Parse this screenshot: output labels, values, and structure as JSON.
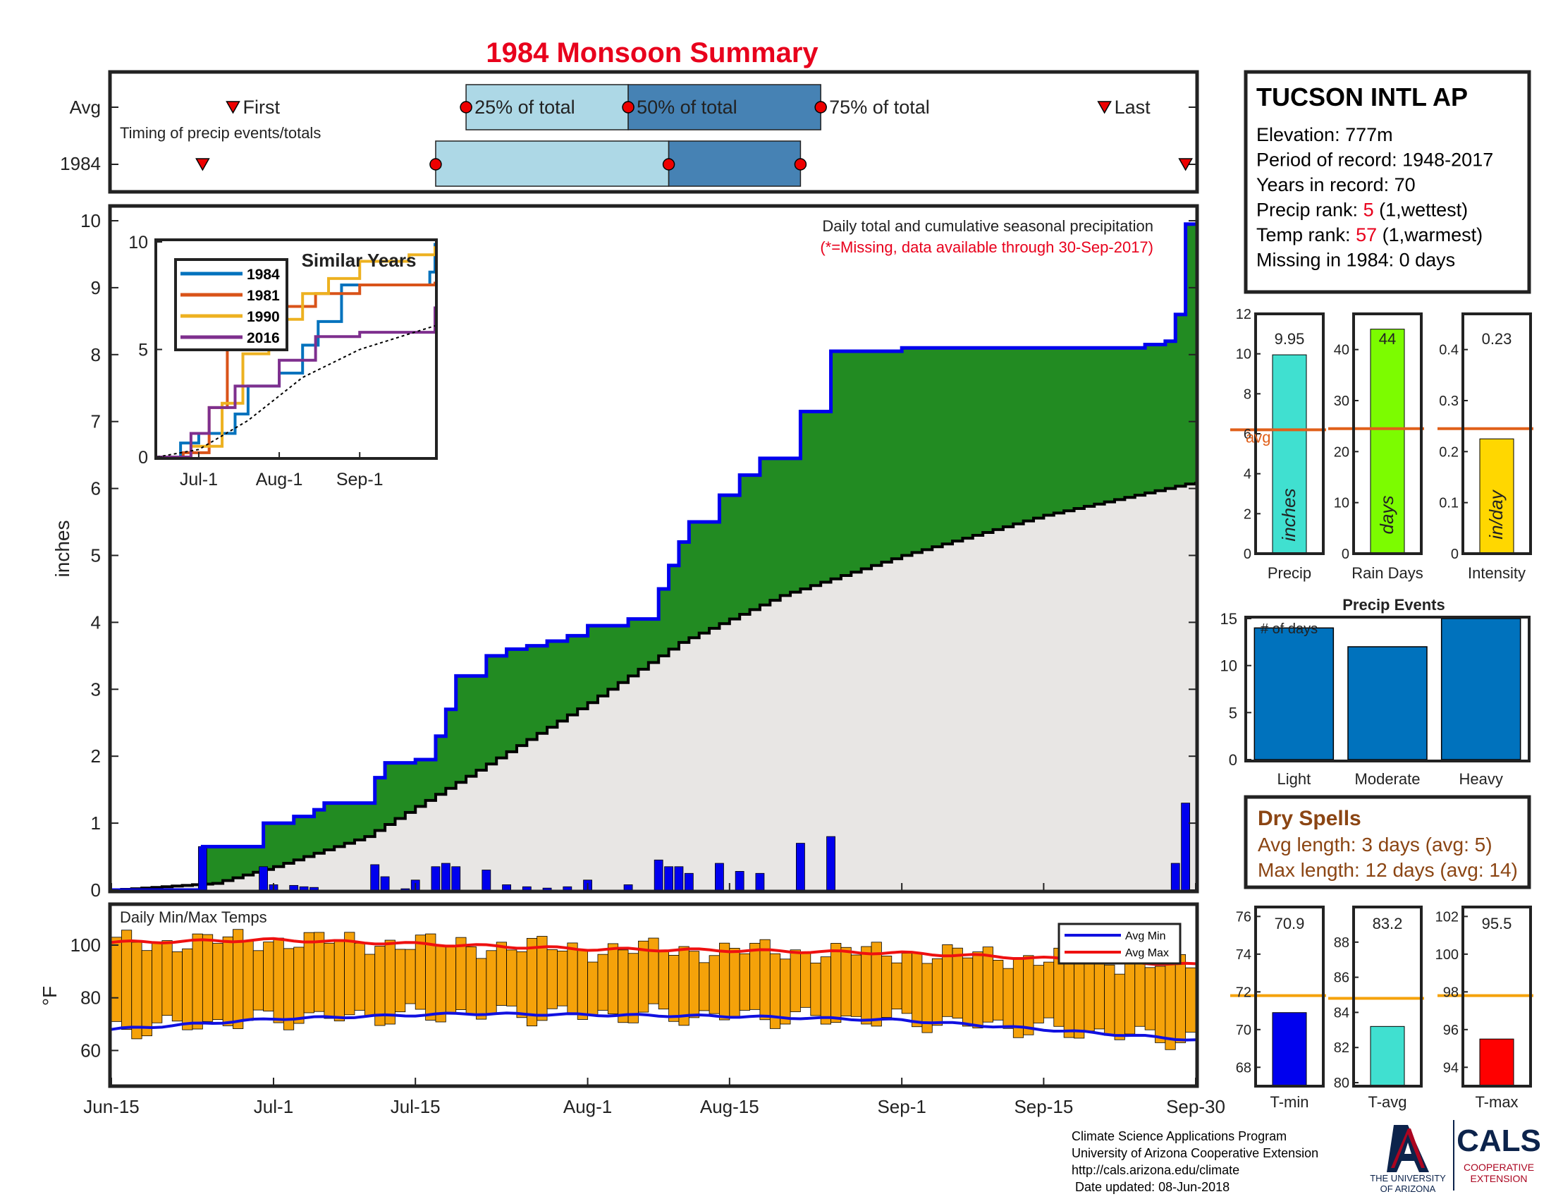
{
  "title": "1984 Monsoon Summary",
  "colors": {
    "title": "#e8001c",
    "cumulative_fill": "#228b22",
    "cumulative_line": "#0000ee",
    "avg_fill": "#e8e6e4",
    "daily_bar": "#0000ee",
    "temp_bar": "#f5a20a",
    "avg_min_line": "#1010e0",
    "avg_max_line": "#ee1010",
    "timing_light": "#add8e6",
    "timing_dark": "#4682b4",
    "orange_avg": "#e0601a"
  },
  "timing": {
    "row_labels": [
      "Avg",
      "1984"
    ],
    "caption": "Timing of precip events/totals",
    "markers": {
      "first": "First",
      "p25": "25% of total",
      "p50": "50% of total",
      "p75": "75% of total",
      "last": "Last"
    },
    "avg": {
      "first": "Jun-27",
      "p25": "Jul-20",
      "p50": "Aug-5",
      "p75": "Aug-24",
      "last": "Sep-21"
    },
    "year": {
      "first": "Jun-24",
      "p25": "Jul-17",
      "p50": "Aug-9",
      "p75": "Aug-22",
      "last": "Sep-29"
    }
  },
  "station": {
    "name": "TUCSON INTL AP",
    "lines": [
      {
        "label": "Elevation: ",
        "value": "777m",
        "suffix": ""
      },
      {
        "label": "Period of record: ",
        "value": "1948-2017",
        "suffix": ""
      },
      {
        "label": "Years in record: ",
        "value": "70",
        "suffix": ""
      },
      {
        "label": "Precip rank: ",
        "value": "5",
        "suffix": " (1,wettest)",
        "highlight": true
      },
      {
        "label": "Temp rank: ",
        "value": "57",
        "suffix": " (1,warmest)",
        "highlight": true
      },
      {
        "label": "Missing in 1984: ",
        "value": "0 days",
        "suffix": ""
      }
    ]
  },
  "main_chart": {
    "note": "Daily total and cumulative seasonal precipitation",
    "missing_note": "(*=Missing, data available through 30-Sep-2017)",
    "ylabel": "inches",
    "x_ticks": [
      "Jun-15",
      "Jul-1",
      "Jul-15",
      "Aug-1",
      "Aug-15",
      "Sep-1",
      "Sep-15",
      "Sep-30"
    ]
  },
  "inset": {
    "title": "Similar Years",
    "x_ticks": [
      "Jul-1",
      "Aug-1",
      "Sep-1"
    ],
    "y_ticks": [
      "0",
      "5",
      "10"
    ]
  },
  "temps": {
    "label": "Daily Min/Max Temps",
    "ylabel": "°F",
    "legend": [
      "Avg Min",
      "Avg Max"
    ]
  },
  "summary_bars": {
    "avg_label": "avg",
    "panels": [
      {
        "name": "Precip",
        "value": 9.95,
        "value_label": "9.95",
        "avg": 6.2,
        "ylim": [
          0,
          12
        ],
        "ticks": [
          "0",
          "2",
          "4",
          "6",
          "8",
          "10",
          "12"
        ],
        "unit": "inches",
        "color": "#40e0d0"
      },
      {
        "name": "Rain Days",
        "value": 44,
        "value_label": "44",
        "avg": 24.5,
        "ylim": [
          0,
          47
        ],
        "ticks": [
          "0",
          "10",
          "20",
          "30",
          "40"
        ],
        "unit": "days",
        "color": "#7cfc00"
      },
      {
        "name": "Intensity",
        "value": 0.225,
        "value_label": "0.23",
        "avg": 0.245,
        "ylim": [
          0,
          0.47
        ],
        "ticks": [
          "0",
          "0.1",
          "0.2",
          "0.3",
          "0.4"
        ],
        "unit": "in/day",
        "color": "#ffd700"
      }
    ]
  },
  "precip_events": {
    "title": "Precip Events",
    "ylabel": "# of days",
    "categories": [
      "Light",
      "Moderate",
      "Heavy"
    ],
    "values": [
      14,
      12,
      15
    ],
    "ticks": [
      "0",
      "5",
      "10",
      "15"
    ]
  },
  "dry_spells": {
    "title": "Dry Spells",
    "lines": [
      "Avg length: 3 days (avg: 5)",
      "Max length: 12 days (avg: 14)"
    ]
  },
  "temp_summary": {
    "panels": [
      {
        "name": "T-min",
        "value": 70.9,
        "value_label": "70.9",
        "avg": 71.8,
        "ylim": [
          67,
          76.5
        ],
        "ticks": [
          "68",
          "70",
          "72",
          "74",
          "76"
        ],
        "color": "#0000ee"
      },
      {
        "name": "T-avg",
        "value": 83.2,
        "value_label": "83.2",
        "avg": 84.8,
        "ylim": [
          79.8,
          90
        ],
        "ticks": [
          "80",
          "82",
          "84",
          "86",
          "88"
        ],
        "color": "#40e0d0"
      },
      {
        "name": "T-max",
        "value": 95.5,
        "value_label": "95.5",
        "avg": 97.8,
        "ylim": [
          93,
          102.5
        ],
        "ticks": [
          "94",
          "96",
          "98",
          "100",
          "102"
        ],
        "color": "#ff0000"
      }
    ]
  },
  "footer": {
    "lines": [
      "Climate Science Applications Program",
      "University of Arizona Cooperative Extension",
      "http://cals.arizona.edu/climate",
      " Date updated: 08-Jun-2018"
    ],
    "logo_ua": "THE UNIVERSITY OF ARIZONA",
    "logo_ua_lines": [
      "THE UNIVERSITY",
      "OF ARIZONA"
    ],
    "logo_cals": "CALS",
    "logo_cals_sub": [
      "COOPERATIVE",
      "EXTENSION"
    ]
  },
  "chart_data": [
    {
      "type": "area",
      "title": "",
      "ylabel": "inches",
      "ylim": [
        0,
        10.2
      ],
      "x_range": [
        "Jun-15",
        "Sep-30"
      ],
      "x_ticks": [
        "Jun-15",
        "Jul-1",
        "Jul-15",
        "Aug-1",
        "Aug-15",
        "Sep-1",
        "Sep-15",
        "Sep-30"
      ],
      "y_ticks": [
        0,
        1,
        2,
        3,
        4,
        5,
        6,
        7,
        8,
        9,
        10
      ],
      "daily_precip": [
        {
          "date": "Jun-24",
          "value": 0.65
        },
        {
          "date": "Jun-30",
          "value": 0.35
        },
        {
          "date": "Jul-1",
          "value": 0.08
        },
        {
          "date": "Jul-3",
          "value": 0.07
        },
        {
          "date": "Jul-4",
          "value": 0.05
        },
        {
          "date": "Jul-5",
          "value": 0.04
        },
        {
          "date": "Jul-11",
          "value": 0.38
        },
        {
          "date": "Jul-12",
          "value": 0.2
        },
        {
          "date": "Jul-14",
          "value": 0.02
        },
        {
          "date": "Jul-15",
          "value": 0.15
        },
        {
          "date": "Jul-17",
          "value": 0.35
        },
        {
          "date": "Jul-18",
          "value": 0.4
        },
        {
          "date": "Jul-19",
          "value": 0.35
        },
        {
          "date": "Jul-22",
          "value": 0.3
        },
        {
          "date": "Jul-24",
          "value": 0.08
        },
        {
          "date": "Jul-26",
          "value": 0.05
        },
        {
          "date": "Jul-28",
          "value": 0.03
        },
        {
          "date": "Jul-30",
          "value": 0.05
        },
        {
          "date": "Aug-1",
          "value": 0.15
        },
        {
          "date": "Aug-5",
          "value": 0.08
        },
        {
          "date": "Aug-8",
          "value": 0.45
        },
        {
          "date": "Aug-9",
          "value": 0.35
        },
        {
          "date": "Aug-10",
          "value": 0.35
        },
        {
          "date": "Aug-11",
          "value": 0.25
        },
        {
          "date": "Aug-14",
          "value": 0.4
        },
        {
          "date": "Aug-16",
          "value": 0.28
        },
        {
          "date": "Aug-18",
          "value": 0.25
        },
        {
          "date": "Aug-22",
          "value": 0.7
        },
        {
          "date": "Aug-25",
          "value": 0.8
        },
        {
          "date": "Sep-28",
          "value": 0.4
        },
        {
          "date": "Sep-29",
          "value": 1.3
        }
      ],
      "series": [
        {
          "name": "1984 cumulative",
          "points": [
            [
              "Jun-15",
              0
            ],
            [
              "Jun-24",
              0.65
            ],
            [
              "Jun-30",
              1.0
            ],
            [
              "Jul-3",
              1.1
            ],
            [
              "Jul-5",
              1.2
            ],
            [
              "Jul-6",
              1.3
            ],
            [
              "Jul-11",
              1.68
            ],
            [
              "Jul-12",
              1.9
            ],
            [
              "Jul-15",
              1.95
            ],
            [
              "Jul-17",
              2.3
            ],
            [
              "Jul-18",
              2.7
            ],
            [
              "Jul-19",
              3.2
            ],
            [
              "Jul-22",
              3.5
            ],
            [
              "Jul-24",
              3.6
            ],
            [
              "Jul-26",
              3.65
            ],
            [
              "Jul-28",
              3.72
            ],
            [
              "Jul-30",
              3.8
            ],
            [
              "Aug-1",
              3.95
            ],
            [
              "Aug-5",
              4.05
            ],
            [
              "Aug-8",
              4.5
            ],
            [
              "Aug-9",
              4.85
            ],
            [
              "Aug-10",
              5.2
            ],
            [
              "Aug-11",
              5.5
            ],
            [
              "Aug-14",
              5.9
            ],
            [
              "Aug-16",
              6.2
            ],
            [
              "Aug-18",
              6.45
            ],
            [
              "Aug-22",
              7.15
            ],
            [
              "Aug-25",
              8.05
            ],
            [
              "Sep-1",
              8.1
            ],
            [
              "Sep-25",
              8.15
            ],
            [
              "Sep-27",
              8.2
            ],
            [
              "Sep-28",
              8.6
            ],
            [
              "Sep-29",
              9.95
            ],
            [
              "Sep-30",
              9.95
            ]
          ]
        },
        {
          "name": "average cumulative",
          "points": [
            [
              "Jun-15",
              0
            ],
            [
              "Jun-25",
              0.1
            ],
            [
              "Jul-1",
              0.35
            ],
            [
              "Jul-10",
              0.8
            ],
            [
              "Jul-20",
              1.7
            ],
            [
              "Aug-1",
              2.8
            ],
            [
              "Aug-10",
              3.7
            ],
            [
              "Aug-20",
              4.4
            ],
            [
              "Sep-1",
              5.0
            ],
            [
              "Sep-15",
              5.6
            ],
            [
              "Sep-30",
              6.1
            ]
          ]
        }
      ]
    },
    {
      "type": "line",
      "title": "Similar Years",
      "ylim": [
        0,
        10
      ],
      "x_ticks": [
        "Jul-1",
        "Aug-1",
        "Sep-1"
      ],
      "series": [
        {
          "name": "1984",
          "color": "#0072bd",
          "points": [
            [
              "Jun-15",
              0
            ],
            [
              "Jun-24",
              0.65
            ],
            [
              "Jul-1",
              1.1
            ],
            [
              "Jul-15",
              2.0
            ],
            [
              "Jul-20",
              3.3
            ],
            [
              "Aug-1",
              3.9
            ],
            [
              "Aug-10",
              5.2
            ],
            [
              "Aug-16",
              6.3
            ],
            [
              "Aug-25",
              8.0
            ],
            [
              "Sep-28",
              8.6
            ],
            [
              "Sep-30",
              9.95
            ]
          ]
        },
        {
          "name": "1981",
          "color": "#d95319",
          "points": [
            [
              "Jun-15",
              0
            ],
            [
              "Jun-25",
              0.2
            ],
            [
              "Jul-5",
              2.3
            ],
            [
              "Jul-12",
              5.0
            ],
            [
              "Jul-20",
              6.5
            ],
            [
              "Aug-1",
              7.0
            ],
            [
              "Aug-15",
              7.6
            ],
            [
              "Sep-1",
              8.0
            ],
            [
              "Sep-30",
              8.15
            ]
          ]
        },
        {
          "name": "1990",
          "color": "#edb120",
          "points": [
            [
              "Jun-15",
              0
            ],
            [
              "Jun-28",
              0.5
            ],
            [
              "Jul-10",
              2.5
            ],
            [
              "Jul-18",
              4.8
            ],
            [
              "Jul-28",
              6.4
            ],
            [
              "Aug-10",
              7.6
            ],
            [
              "Aug-20",
              8.3
            ],
            [
              "Sep-1",
              9.1
            ],
            [
              "Sep-20",
              9.4
            ],
            [
              "Sep-30",
              9.8
            ]
          ]
        },
        {
          "name": "2016",
          "color": "#7e2f8e",
          "points": [
            [
              "Jun-15",
              0
            ],
            [
              "Jun-28",
              1.1
            ],
            [
              "Jul-5",
              2.3
            ],
            [
              "Jul-15",
              3.3
            ],
            [
              "Aug-1",
              4.5
            ],
            [
              "Aug-15",
              5.6
            ],
            [
              "Sep-1",
              5.8
            ],
            [
              "Sep-20",
              5.8
            ],
            [
              "Sep-30",
              7.0
            ]
          ]
        },
        {
          "name": "average",
          "color": "#000000",
          "dashed": true,
          "points": [
            [
              "Jun-15",
              0
            ],
            [
              "Jul-1",
              0.35
            ],
            [
              "Jul-20",
              1.7
            ],
            [
              "Aug-10",
              3.7
            ],
            [
              "Sep-1",
              5.0
            ],
            [
              "Sep-30",
              6.1
            ]
          ]
        }
      ]
    },
    {
      "type": "bar",
      "title": "Daily Min/Max Temps",
      "ylabel": "°F",
      "ylim": [
        47,
        115
      ],
      "y_ticks": [
        60,
        80,
        100
      ],
      "avg_min": [
        [
          "Jun-15",
          68
        ],
        [
          "Jul-1",
          72
        ],
        [
          "Jul-20",
          74
        ],
        [
          "Aug-15",
          73
        ],
        [
          "Sep-1",
          71.5
        ],
        [
          "Sep-15",
          68
        ],
        [
          "Sep-30",
          64
        ]
      ],
      "avg_max": [
        [
          "Jun-15",
          101
        ],
        [
          "Jul-1",
          102
        ],
        [
          "Jul-15",
          100.5
        ],
        [
          "Aug-1",
          98.5
        ],
        [
          "Aug-15",
          98
        ],
        [
          "Sep-1",
          97
        ],
        [
          "Sep-15",
          95
        ],
        [
          "Sep-30",
          92.5
        ]
      ],
      "daily_min_max_note": "one orange bar per day, Jun-15 to Sep-30, spanning roughly 62-106 °F"
    }
  ]
}
